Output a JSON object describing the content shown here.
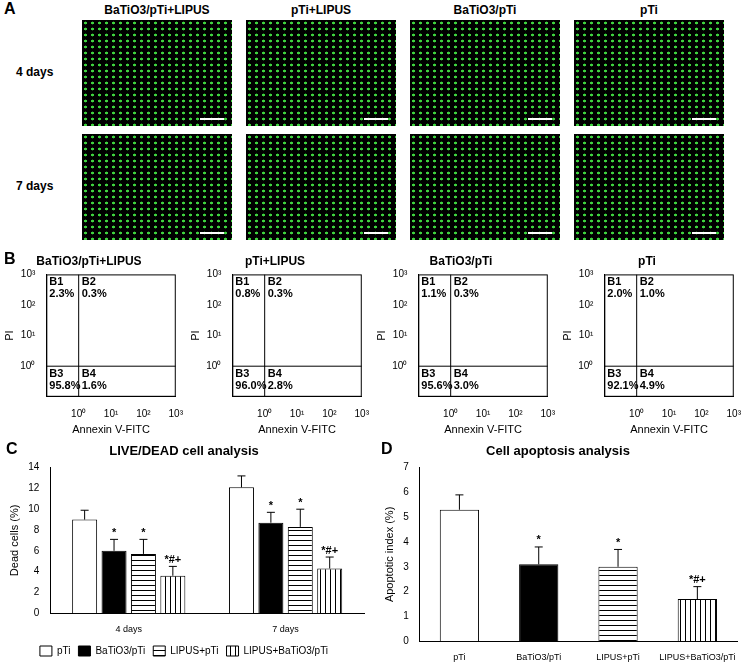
{
  "panel_A": {
    "label": "A",
    "type": "image",
    "columns": [
      "BaTiO3/pTi+LIPUS",
      "pTi+LIPUS",
      "BaTiO3/pTi",
      "pTi"
    ],
    "rows": [
      "4 days",
      "7 days"
    ]
  },
  "chart_data": [
    {
      "label": "B",
      "type": "flow_cytometry",
      "xlabel": "Annexin V-FITC",
      "ylabel": "PI",
      "log": true,
      "xlim": [
        0.1,
        1000
      ],
      "ylim": [
        0.1,
        1000
      ],
      "xticks": [
        {
          "value": 1,
          "label": "10⁰"
        },
        {
          "value": 10,
          "label": "10¹"
        },
        {
          "value": 100,
          "label": "10²"
        },
        {
          "value": 1000,
          "label": "10³"
        }
      ],
      "yticks": [
        {
          "value": 1,
          "label": "10⁰"
        },
        {
          "value": 10,
          "label": "10¹"
        },
        {
          "value": 100,
          "label": "10²"
        },
        {
          "value": 1000,
          "label": "10³"
        }
      ],
      "plots": [
        {
          "title": "BaTiO3/pTi+LIPUS",
          "categories": [
            "B1",
            "B2",
            "B3",
            "B4"
          ],
          "values": [
            2.3,
            0.3,
            95.8,
            1.6
          ],
          "value_labels": [
            "2.3%",
            "0.3%",
            "95.8%",
            "1.6%"
          ]
        },
        {
          "title": "pTi+LIPUS",
          "categories": [
            "B1",
            "B2",
            "B3",
            "B4"
          ],
          "values": [
            0.8,
            0.3,
            96.0,
            2.8
          ],
          "value_labels": [
            "0.8%",
            "0.3%",
            "96.0%",
            "2.8%"
          ]
        },
        {
          "title": "BaTiO3/pTi",
          "categories": [
            "B1",
            "B2",
            "B3",
            "B4"
          ],
          "values": [
            1.1,
            0.3,
            95.6,
            3.0
          ],
          "value_labels": [
            "1.1%",
            "0.3%",
            "95.6%",
            "3.0%"
          ]
        },
        {
          "title": "pTi",
          "categories": [
            "B1",
            "B2",
            "B3",
            "B4"
          ],
          "values": [
            2.0,
            1.0,
            92.1,
            4.9
          ],
          "value_labels": [
            "2.0%",
            "1.0%",
            "92.1%",
            "4.9%"
          ]
        }
      ]
    },
    {
      "label": "C",
      "type": "bar",
      "title": "LIVE/DEAD cell analysis",
      "ylabel": "Dead cells (%)",
      "categories": [
        "4 days",
        "7 days"
      ],
      "series": [
        {
          "name": "pTi",
          "color": "#ffffff",
          "values": [
            9.0,
            12.1
          ],
          "errors": [
            0.9,
            1.1
          ]
        },
        {
          "name": "BaTiO3/pTi",
          "color": "#000000",
          "values": [
            6.0,
            8.7
          ],
          "errors": [
            1.1,
            1.0
          ],
          "annotations": [
            "*",
            "*"
          ]
        },
        {
          "name": "LIPUS+pTi",
          "color": "#ffffff",
          "values": [
            5.7,
            8.3
          ],
          "errors": [
            1.4,
            1.7
          ],
          "annotations": [
            "*",
            "*"
          ]
        },
        {
          "name": "LIPUS+BaTiO3/pTi",
          "color": "#ffffff",
          "values": [
            3.6,
            4.3
          ],
          "errors": [
            0.9,
            1.1
          ],
          "annotations": [
            "*#+",
            "*#+"
          ]
        }
      ],
      "ylim": [
        0,
        14
      ],
      "yticks": [
        0,
        2,
        4,
        6,
        8,
        10,
        12,
        14
      ],
      "grid": false,
      "legend": "bottom"
    },
    {
      "label": "D",
      "type": "bar",
      "title": "Cell apoptosis analysis",
      "ylabel": "Apoptotic index (%)",
      "categories": [
        "pTi",
        "BaTiO3/pTi",
        "LIPUS+pTi",
        "LIPUS+BaTiO3/pTi"
      ],
      "values": [
        5.3,
        3.1,
        3.0,
        1.7
      ],
      "errors": [
        0.6,
        0.7,
        0.7,
        0.5
      ],
      "annotations": [
        null,
        "*",
        "*",
        "*#+"
      ],
      "colors": [
        "#ffffff",
        "#000000",
        "#ffffff",
        "#ffffff"
      ],
      "ylim": [
        0,
        7
      ],
      "yticks": [
        0,
        1,
        2,
        3,
        4,
        5,
        6,
        7
      ],
      "grid": false
    }
  ]
}
